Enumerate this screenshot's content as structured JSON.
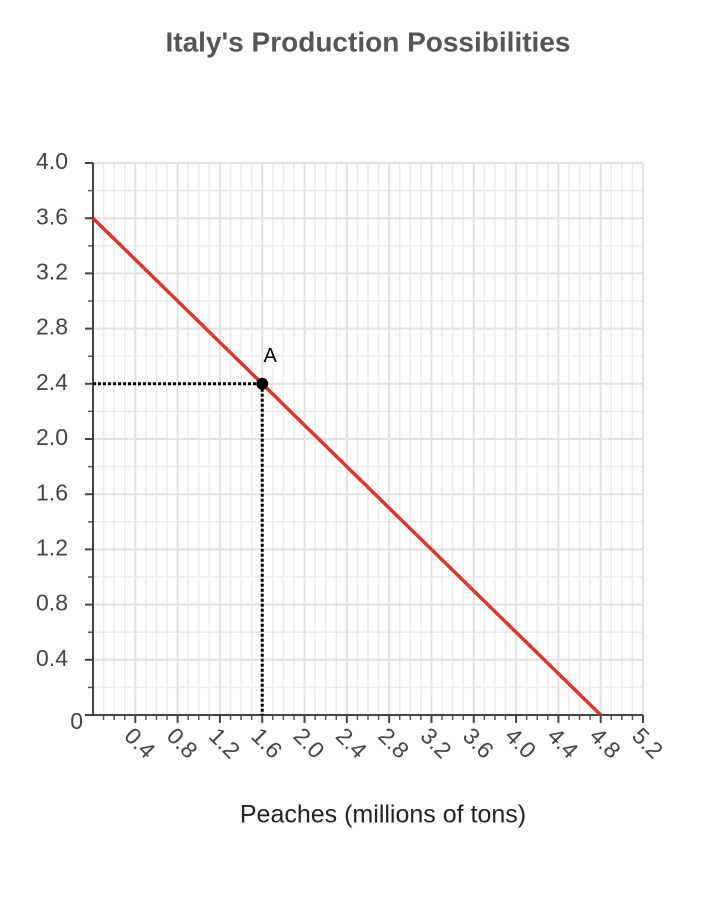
{
  "chart_data": {
    "type": "line",
    "title": "Italy's Production Possibilities",
    "x_label": "Peaches (millions of tons)",
    "x": [
      0,
      4.8
    ],
    "series": [
      {
        "color": "#d9392b",
        "values": [
          3.6,
          0
        ]
      }
    ],
    "points": [
      {
        "label": "A",
        "x": 1.6,
        "y": 2.4
      }
    ],
    "xlim": [
      0,
      5.2
    ],
    "ylim": [
      0,
      4.0
    ],
    "xticks": [
      0.4,
      0.8,
      1.2,
      1.6,
      {
        "value": 2,
        "label": "2.0"
      },
      2.4,
      2.8,
      3.2,
      3.6,
      {
        "value": 4,
        "label": "4.0"
      },
      4.4,
      4.8,
      5.2
    ],
    "yticks": [
      0,
      0.4,
      0.8,
      1.2,
      1.6,
      {
        "value": 2,
        "label": "2.0"
      },
      2.4,
      2.8,
      3.2,
      3.6,
      {
        "value": 4,
        "label": "4.0"
      }
    ],
    "grid": true
  }
}
